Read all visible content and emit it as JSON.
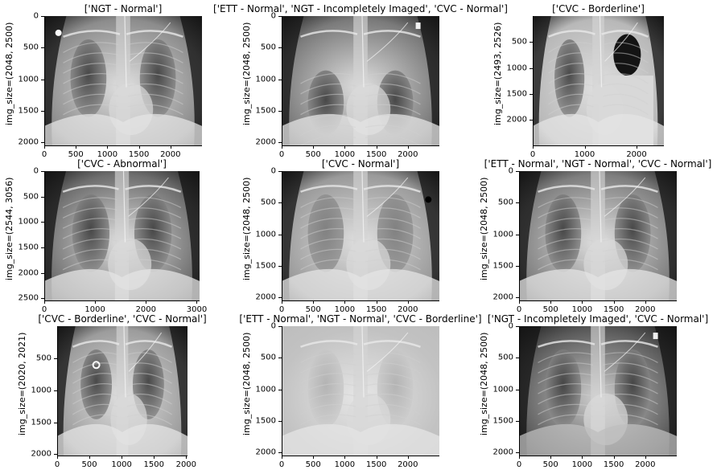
{
  "figure": {
    "ylabel_prefix": "img_size=",
    "panels": [
      {
        "title": "['NGT - Normal']",
        "ylabel": "img_size=(2048, 2500)",
        "xticks": [
          "0",
          "500",
          "1000",
          "1500",
          "2000"
        ],
        "yticks": [
          "0",
          "500",
          "1000",
          "1500",
          "2000"
        ],
        "xray": {
          "style": "bright",
          "tone": "#8c8c8c"
        }
      },
      {
        "title": "['ETT - Normal', 'NGT - Incompletely Imaged', 'CVC - Normal']",
        "ylabel": "img_size=(2048, 2500)",
        "xticks": [
          "0",
          "500",
          "1000",
          "1500",
          "2000"
        ],
        "yticks": [
          "0",
          "500",
          "1000",
          "1500",
          "2000"
        ],
        "xray": {
          "style": "lordotic",
          "tone": "#7a7a7a"
        }
      },
      {
        "title": "['CVC - Borderline']",
        "ylabel": "img_size=(2493, 2526)",
        "xticks": [
          "0",
          "1000",
          "2000"
        ],
        "yticks": [
          "500",
          "1000",
          "1500",
          "2000"
        ],
        "xray": {
          "style": "effusion",
          "tone": "#b8b8b8"
        }
      },
      {
        "title": "['CVC - Abnormal']",
        "ylabel": "img_size=(2544, 3056)",
        "xticks": [
          "0",
          "1000",
          "2000",
          "3000"
        ],
        "yticks": [
          "0",
          "500",
          "1000",
          "1500",
          "2000",
          "2500"
        ],
        "xray": {
          "style": "wide",
          "tone": "#6e6e6e"
        }
      },
      {
        "title": "['CVC - Normal']",
        "ylabel": "img_size=(2048, 2500)",
        "xticks": [
          "0",
          "500",
          "1000",
          "1500",
          "2000"
        ],
        "yticks": [
          "0",
          "500",
          "1000",
          "1500",
          "2000"
        ],
        "xray": {
          "style": "hazy",
          "tone": "#9a9a9a"
        }
      },
      {
        "title": "['ETT - Normal', 'NGT - Normal', 'CVC - Normal']",
        "ylabel": "img_size=(2048, 2500)",
        "xticks": [
          "0",
          "500",
          "1000",
          "1500",
          "2000"
        ],
        "yticks": [
          "0",
          "500",
          "1000",
          "1500",
          "2000"
        ],
        "xray": {
          "style": "normal",
          "tone": "#7e7e7e"
        }
      },
      {
        "title": "['CVC - Borderline', 'CVC - Normal']",
        "ylabel": "img_size=(2020, 2021)",
        "xticks": [
          "0",
          "500",
          "1000",
          "1500",
          "2000"
        ],
        "yticks": [
          "500",
          "1000",
          "1500",
          "2000"
        ],
        "xray": {
          "style": "square",
          "tone": "#9c9c9c"
        }
      },
      {
        "title": "['ETT - Normal', 'NGT - Normal', 'CVC - Borderline']",
        "ylabel": "img_size=(2048, 2500)",
        "xticks": [
          "0",
          "500",
          "1000",
          "1500",
          "2000"
        ],
        "yticks": [
          "0",
          "500",
          "1000",
          "1500",
          "2000"
        ],
        "xray": {
          "style": "washed",
          "tone": "#c2c2c2"
        }
      },
      {
        "title": "['NGT - Incompletely Imaged', 'CVC - Normal']",
        "ylabel": "img_size=(2048, 2500)",
        "xticks": [
          "0",
          "500",
          "1000",
          "1500",
          "2000"
        ],
        "yticks": [
          "0",
          "500",
          "1000",
          "1500",
          "2000"
        ],
        "xray": {
          "style": "dark",
          "tone": "#5a5a5a"
        }
      }
    ]
  }
}
